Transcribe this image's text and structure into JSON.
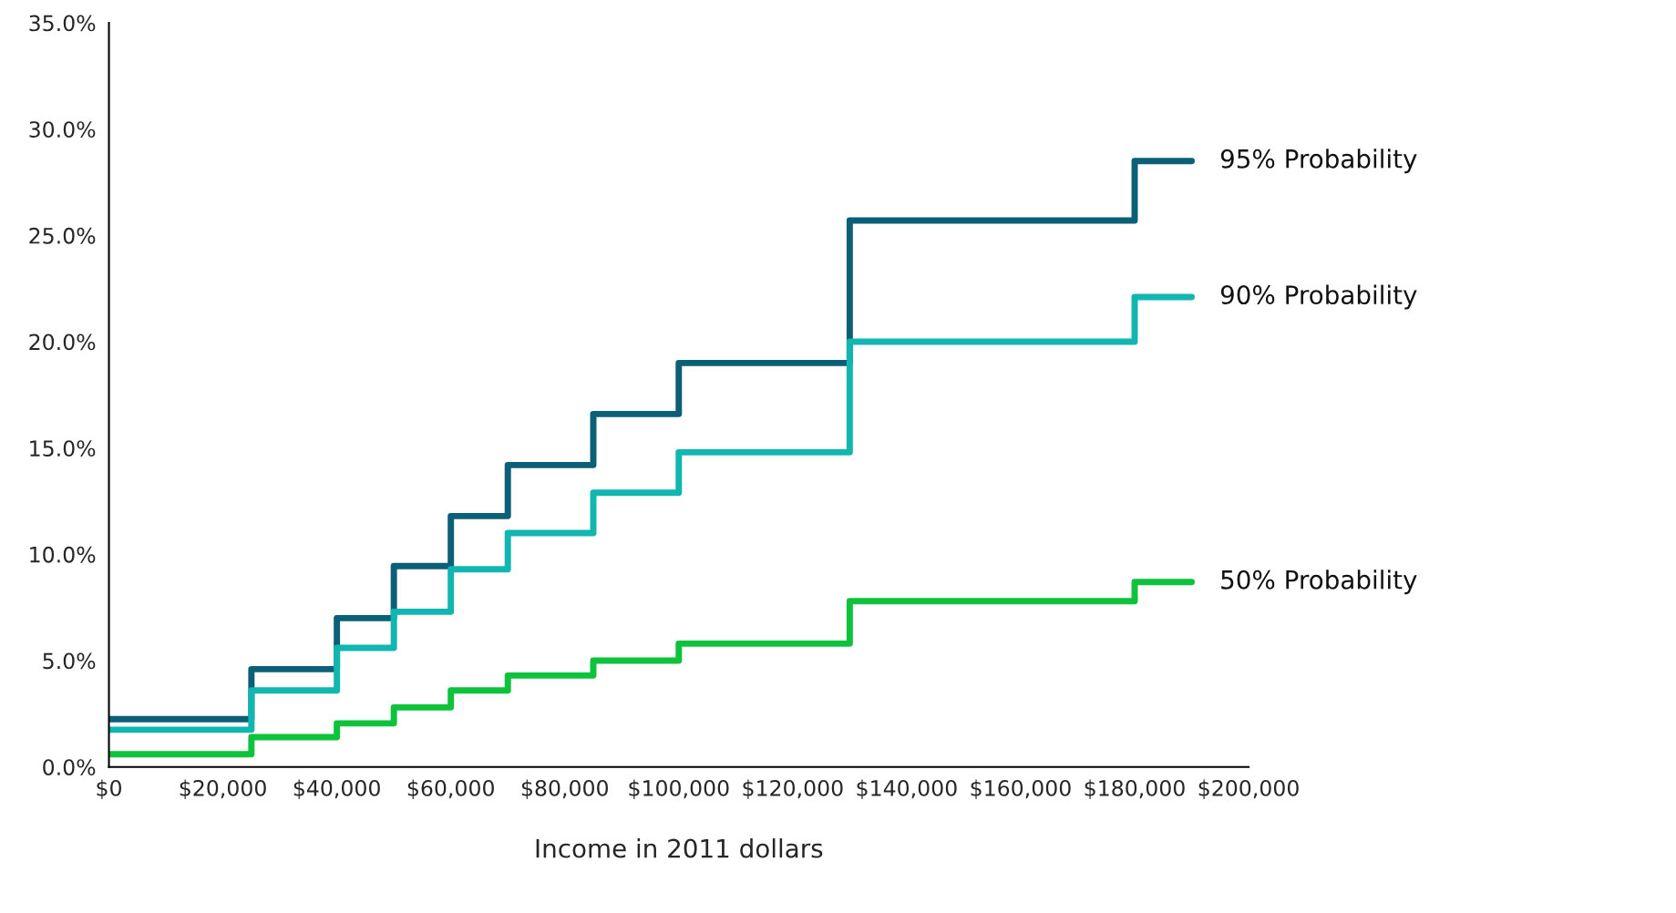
{
  "chart_data": {
    "type": "step",
    "xlabel": "Income in 2011 dollars",
    "x": [
      0,
      25000,
      40000,
      50000,
      60000,
      70000,
      85000,
      100000,
      130000,
      180000,
      190000
    ],
    "series": [
      {
        "name": "95% Probability",
        "color": "#0b5f76",
        "values": [
          2.25,
          4.6,
          7.0,
          9.45,
          11.8,
          14.2,
          16.6,
          19.0,
          25.7,
          28.5,
          28.5
        ]
      },
      {
        "name": "90% Probability",
        "color": "#12b6b1",
        "values": [
          1.75,
          3.6,
          5.6,
          7.3,
          9.3,
          11.0,
          12.9,
          14.8,
          20.0,
          22.1,
          22.1
        ]
      },
      {
        "name": "50% Probability",
        "color": "#0ec23c",
        "values": [
          0.6,
          1.4,
          2.05,
          2.8,
          3.6,
          4.3,
          5.0,
          5.8,
          7.8,
          8.7,
          8.7
        ]
      }
    ],
    "xlim": [
      0,
      200000
    ],
    "xticks": [
      {
        "value": 0,
        "label": "$0"
      },
      {
        "value": 20000,
        "label": "$20,000"
      },
      {
        "value": 40000,
        "label": "$40,000"
      },
      {
        "value": 60000,
        "label": "$60,000"
      },
      {
        "value": 80000,
        "label": "$80,000"
      },
      {
        "value": 100000,
        "label": "$100,000"
      },
      {
        "value": 120000,
        "label": "$120,000"
      },
      {
        "value": 140000,
        "label": "$140,000"
      },
      {
        "value": 160000,
        "label": "$160,000"
      },
      {
        "value": 180000,
        "label": "$180,000"
      },
      {
        "value": 200000,
        "label": "$200,000"
      }
    ],
    "ylim": [
      0,
      35
    ],
    "yticks": [
      {
        "value": 0,
        "label": "0.0%"
      },
      {
        "value": 5,
        "label": "5.0%"
      },
      {
        "value": 10,
        "label": "10.0%"
      },
      {
        "value": 15,
        "label": "15.0%"
      },
      {
        "value": 20,
        "label": "20.0%"
      },
      {
        "value": 25,
        "label": "25.0%"
      },
      {
        "value": 30,
        "label": "30.0%"
      },
      {
        "value": 35,
        "label": "35.0%"
      }
    ],
    "grid": false,
    "legend": false,
    "marker": "none",
    "line_style": "solid"
  }
}
